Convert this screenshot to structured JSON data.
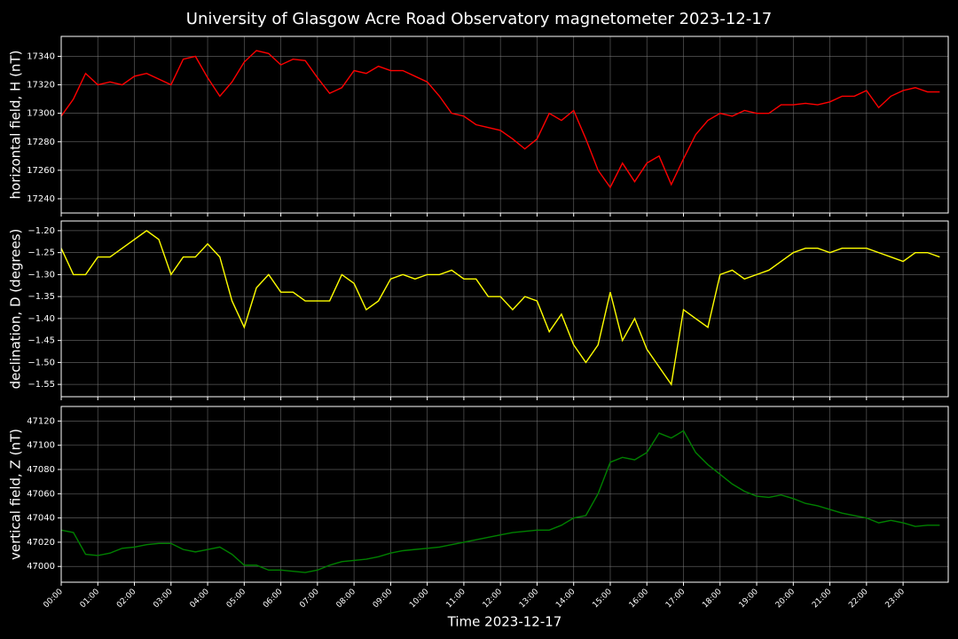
{
  "chart_data": {
    "type": "line",
    "title": "University of Glasgow Acre Road Observatory magnetometer 2023-12-17",
    "xlabel": "Time 2023-12-17",
    "grid": true,
    "x": [
      0,
      20,
      40,
      60,
      80,
      100,
      120,
      140,
      160,
      180,
      200,
      220,
      240,
      260,
      280,
      300,
      320,
      340,
      360,
      380,
      400,
      420,
      440,
      460,
      480,
      500,
      520,
      540,
      560,
      580,
      600,
      620,
      640,
      660,
      680,
      700,
      720,
      740,
      760,
      780,
      800,
      820,
      840,
      860,
      880,
      900,
      920,
      940,
      960,
      980,
      1000,
      1020,
      1040,
      1060,
      1080,
      1100,
      1120,
      1140,
      1160,
      1180,
      1200,
      1220,
      1240,
      1260,
      1280,
      1300,
      1320,
      1340,
      1360,
      1380,
      1400,
      1420,
      1440
    ],
    "xlim": [
      0,
      1454
    ],
    "xticks": [
      {
        "value": 0,
        "label": "00:00"
      },
      {
        "value": 60,
        "label": "01:00"
      },
      {
        "value": 120,
        "label": "02:00"
      },
      {
        "value": 180,
        "label": "03:00"
      },
      {
        "value": 240,
        "label": "04:00"
      },
      {
        "value": 300,
        "label": "05:00"
      },
      {
        "value": 360,
        "label": "06:00"
      },
      {
        "value": 420,
        "label": "07:00"
      },
      {
        "value": 480,
        "label": "08:00"
      },
      {
        "value": 540,
        "label": "09:00"
      },
      {
        "value": 600,
        "label": "10:00"
      },
      {
        "value": 660,
        "label": "11:00"
      },
      {
        "value": 720,
        "label": "12:00"
      },
      {
        "value": 780,
        "label": "13:00"
      },
      {
        "value": 840,
        "label": "14:00"
      },
      {
        "value": 900,
        "label": "15:00"
      },
      {
        "value": 960,
        "label": "16:00"
      },
      {
        "value": 1020,
        "label": "17:00"
      },
      {
        "value": 1080,
        "label": "18:00"
      },
      {
        "value": 1140,
        "label": "19:00"
      },
      {
        "value": 1200,
        "label": "20:00"
      },
      {
        "value": 1260,
        "label": "21:00"
      },
      {
        "value": 1320,
        "label": "22:00"
      },
      {
        "value": 1380,
        "label": "23:00"
      }
    ],
    "panels": [
      {
        "ylabel": "horizontal field, H (nT)",
        "color": "#ff0000",
        "ylim": [
          17230,
          17354
        ],
        "yticks": [
          17240,
          17260,
          17280,
          17300,
          17320,
          17340
        ],
        "values": [
          17298,
          17310,
          17328,
          17320,
          17322,
          17320,
          17326,
          17328,
          17324,
          17320,
          17338,
          17340,
          17325,
          17312,
          17322,
          17336,
          17344,
          17342,
          17334,
          17338,
          17337,
          17325,
          17314,
          17318,
          17330,
          17328,
          17333,
          17330,
          17330,
          17326,
          17322,
          17312,
          17300,
          17298,
          17292,
          17290,
          17288,
          17282,
          17275,
          17282,
          17300,
          17295,
          17302,
          17282,
          17260,
          17248,
          17265,
          17252,
          17265,
          17270,
          17250,
          17268,
          17285,
          17295,
          17300,
          17298,
          17302,
          17300,
          17300,
          17306,
          17306,
          17307,
          17306,
          17308,
          17312,
          17312,
          17316,
          17304,
          17312,
          17316,
          17318,
          17315,
          17315
        ]
      },
      {
        "ylabel": "declination, D (degrees)",
        "color": "#ffff00",
        "ylim": [
          -1.578,
          -1.178
        ],
        "yticks": [
          {
            "value": -1.55,
            "label": "−1.55"
          },
          {
            "value": -1.5,
            "label": "−1.50"
          },
          {
            "value": -1.45,
            "label": "−1.45"
          },
          {
            "value": -1.4,
            "label": "−1.40"
          },
          {
            "value": -1.35,
            "label": "−1.35"
          },
          {
            "value": -1.3,
            "label": "−1.30"
          },
          {
            "value": -1.25,
            "label": "−1.25"
          },
          {
            "value": -1.2,
            "label": "−1.20"
          }
        ],
        "values": [
          -1.24,
          -1.3,
          -1.3,
          -1.26,
          -1.26,
          -1.24,
          -1.22,
          -1.2,
          -1.22,
          -1.3,
          -1.26,
          -1.26,
          -1.23,
          -1.26,
          -1.36,
          -1.42,
          -1.33,
          -1.3,
          -1.34,
          -1.34,
          -1.36,
          -1.36,
          -1.36,
          -1.3,
          -1.32,
          -1.38,
          -1.36,
          -1.31,
          -1.3,
          -1.31,
          -1.3,
          -1.3,
          -1.29,
          -1.31,
          -1.31,
          -1.35,
          -1.35,
          -1.38,
          -1.35,
          -1.36,
          -1.43,
          -1.39,
          -1.46,
          -1.5,
          -1.46,
          -1.34,
          -1.45,
          -1.4,
          -1.47,
          -1.51,
          -1.55,
          -1.38,
          -1.4,
          -1.42,
          -1.3,
          -1.29,
          -1.31,
          -1.3,
          -1.29,
          -1.27,
          -1.25,
          -1.24,
          -1.24,
          -1.25,
          -1.24,
          -1.24,
          -1.24,
          -1.25,
          -1.26,
          -1.27,
          -1.25,
          -1.25,
          -1.26
        ]
      },
      {
        "ylabel": "vertical field, Z (nT)",
        "color": "#008000",
        "ylim": [
          46987,
          47132
        ],
        "yticks": [
          47000,
          47020,
          47040,
          47060,
          47080,
          47100,
          47120
        ],
        "values": [
          47030,
          47028,
          47010,
          47009,
          47011,
          47015,
          47016,
          47018,
          47019,
          47019,
          47014,
          47012,
          47014,
          47016,
          47010,
          47001,
          47001,
          46997,
          46997,
          46996,
          46995,
          46997,
          47001,
          47004,
          47005,
          47006,
          47008,
          47011,
          47013,
          47014,
          47015,
          47016,
          47018,
          47020,
          47022,
          47024,
          47026,
          47028,
          47029,
          47030,
          47030,
          47034,
          47040,
          47042,
          47060,
          47086,
          47090,
          47088,
          47094,
          47110,
          47106,
          47112,
          47094,
          47084,
          47076,
          47068,
          47062,
          47058,
          47057,
          47059,
          47056,
          47052,
          47050,
          47047,
          47044,
          47042,
          47040,
          47036,
          47038,
          47036,
          47033,
          47034,
          47034
        ]
      }
    ]
  }
}
